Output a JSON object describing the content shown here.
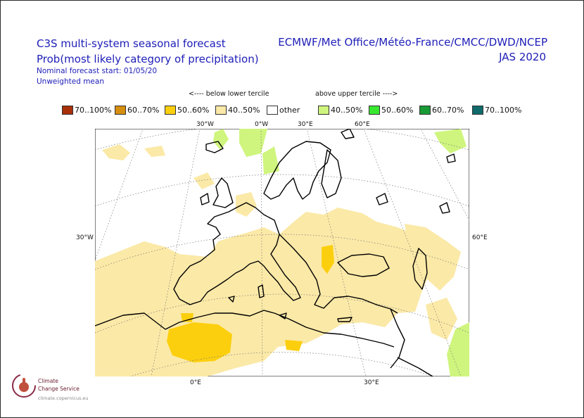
{
  "header": {
    "title_line1": "C3S multi-system seasonal forecast",
    "title_line2": "Prob(most likely category of precipitation)",
    "nominal_start": "Nominal forecast start: 01/05/20",
    "method": "Unweighted mean",
    "systems": "ECMWF/Met Office/Météo-France/CMCC/DWD/NCEP",
    "season": "JAS 2020"
  },
  "legend": {
    "below_header": "<---- below lower tercile",
    "above_header": "above upper tercile ---->",
    "items": [
      {
        "label": "70..100%",
        "color": "#a83008"
      },
      {
        "label": "60..70%",
        "color": "#d68e0e"
      },
      {
        "label": "50..60%",
        "color": "#fccf0e"
      },
      {
        "label": "40..50%",
        "color": "#fbe9a7"
      },
      {
        "label": "other",
        "color": "#ffffff"
      },
      {
        "label": "40..50%",
        "color": "#cff57e"
      },
      {
        "label": "50..60%",
        "color": "#37e82f"
      },
      {
        "label": "60..70%",
        "color": "#189a35"
      },
      {
        "label": "70..100%",
        "color": "#0f6a6a"
      }
    ]
  },
  "map": {
    "lon_labels_top": [
      "30°W",
      "0°W",
      "30°E",
      "60°E"
    ],
    "lat_labels": [
      "30°W",
      "60°E"
    ],
    "lon_labels_bottom": [
      "0°E",
      "30°E"
    ],
    "colors": {
      "below_40_50": "#fbe9a7",
      "below_50_60": "#fccf0e",
      "above_40_50": "#cff57e",
      "coast": "#000000",
      "grid": "#777777"
    }
  },
  "logo": {
    "line1": "Climate",
    "line2": "Change Service",
    "url": "climate.copernicus.eu",
    "color": "#8a2b46"
  }
}
